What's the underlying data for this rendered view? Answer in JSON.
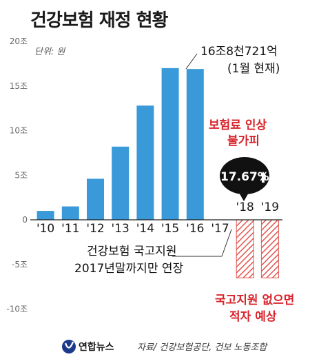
{
  "chart_data": {
    "type": "bar",
    "title": "건강보험 재정 현황",
    "unit_label": "단위: 원",
    "categories": [
      "'10",
      "'11",
      "'12",
      "'13",
      "'14",
      "'15",
      "'16",
      "'17",
      "'18",
      "'19"
    ],
    "series": [
      {
        "values": [
          1.0,
          1.5,
          4.6,
          8.2,
          12.8,
          17.0,
          16.9,
          null,
          -6.5,
          -6.5
        ]
      }
    ],
    "bar_styles": [
      "solid",
      "solid",
      "solid",
      "solid",
      "solid",
      "solid",
      "solid",
      "none",
      "hatched-red",
      "hatched-red"
    ],
    "y_ticks": [
      "20조",
      "15조",
      "10조",
      "5조",
      "0",
      "-5조",
      "-10조"
    ],
    "y_tick_values": [
      20,
      15,
      10,
      5,
      0,
      -5,
      -10
    ],
    "ylim": [
      -10,
      20
    ],
    "colors": {
      "bar": "#3a9ad9",
      "negative": "#e2564f",
      "text": "#1a1a1a",
      "red": "#d8232a"
    },
    "annotations": {
      "top_value_line1": "16조8천721억",
      "top_value_line2": "(1월 현재)",
      "raise_line1": "보험료 인상",
      "raise_line2": "불가피",
      "badge_value": "17.67%",
      "badge_icon": "up-arrow-icon",
      "support_line1": "건강보험 국고지원",
      "support_line2": "2017년말까지만 연장",
      "deficit_line1": "국고지원 없으면",
      "deficit_line2": "적자 예상"
    }
  },
  "source": "자료/ 건강보험공단, 건보 노동조합",
  "logo_text": "연합뉴스",
  "logo_icon": "yonhap-logo-icon"
}
